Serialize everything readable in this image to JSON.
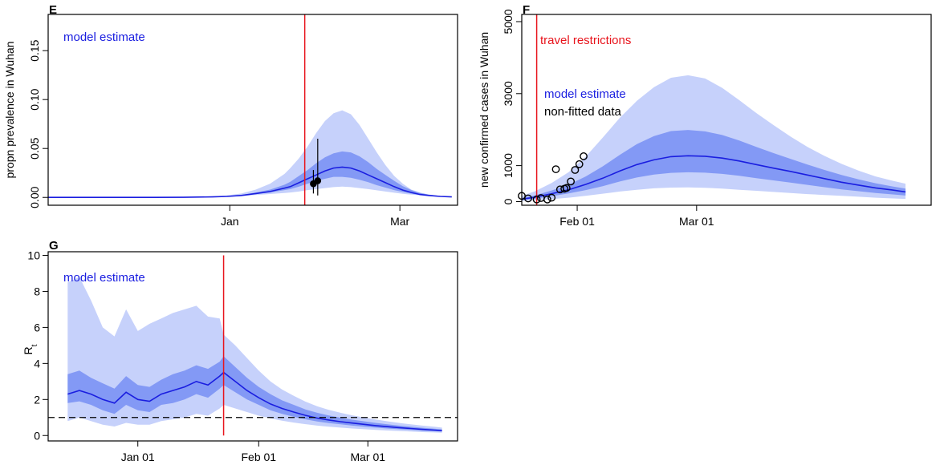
{
  "chart_data": [
    {
      "type": "area",
      "panel": "E",
      "ylabel": "propn prevalence in Wuhan",
      "x_ticks": [
        "Jan",
        "Mar"
      ],
      "y_ticks": [
        "0.00",
        "0.05",
        "0.10",
        "0.15"
      ],
      "ylim": [
        -0.008,
        0.187
      ],
      "legend": [
        "model estimate"
      ],
      "intervention_line_x": 27,
      "series_days": [
        -45,
        -35,
        -25,
        -15,
        -5,
        0,
        5,
        10,
        15,
        20,
        22,
        25,
        28,
        31,
        34,
        37,
        40,
        43,
        46,
        49,
        52,
        55,
        58,
        61,
        64,
        67,
        70,
        74,
        78
      ],
      "median": [
        0,
        0,
        0,
        0.0001,
        0.0005,
        0.001,
        0.002,
        0.004,
        0.006,
        0.0095,
        0.011,
        0.015,
        0.019,
        0.023,
        0.027,
        0.03,
        0.031,
        0.03,
        0.027,
        0.023,
        0.019,
        0.015,
        0.011,
        0.0075,
        0.005,
        0.003,
        0.002,
        0.001,
        0.0005
      ],
      "band_50": [
        [
          0,
          0
        ],
        [
          0,
          0
        ],
        [
          0,
          0
        ],
        [
          0.0001,
          0.0001
        ],
        [
          0.0004,
          0.0006
        ],
        [
          0.0008,
          0.0012
        ],
        [
          0.0017,
          0.0025
        ],
        [
          0.0033,
          0.005
        ],
        [
          0.005,
          0.008
        ],
        [
          0.0075,
          0.013
        ],
        [
          0.0085,
          0.016
        ],
        [
          0.011,
          0.022
        ],
        [
          0.014,
          0.028
        ],
        [
          0.017,
          0.035
        ],
        [
          0.019,
          0.041
        ],
        [
          0.021,
          0.045
        ],
        [
          0.021,
          0.047
        ],
        [
          0.02,
          0.046
        ],
        [
          0.018,
          0.042
        ],
        [
          0.0155,
          0.036
        ],
        [
          0.0125,
          0.029
        ],
        [
          0.01,
          0.023
        ],
        [
          0.0075,
          0.017
        ],
        [
          0.0055,
          0.0115
        ],
        [
          0.0038,
          0.0075
        ],
        [
          0.0025,
          0.0045
        ],
        [
          0.0016,
          0.0028
        ],
        [
          0.0009,
          0.0014
        ],
        [
          0.0004,
          0.0006
        ]
      ],
      "band_95": [
        [
          0,
          0
        ],
        [
          0,
          0
        ],
        [
          0,
          0
        ],
        [
          0.0001,
          0.0002
        ],
        [
          0.0003,
          0.001
        ],
        [
          0.0006,
          0.002
        ],
        [
          0.0013,
          0.004
        ],
        [
          0.0025,
          0.008
        ],
        [
          0.0035,
          0.014
        ],
        [
          0.0045,
          0.024
        ],
        [
          0.005,
          0.03
        ],
        [
          0.006,
          0.04
        ],
        [
          0.0075,
          0.052
        ],
        [
          0.0085,
          0.066
        ],
        [
          0.0095,
          0.078
        ],
        [
          0.0105,
          0.086
        ],
        [
          0.011,
          0.089
        ],
        [
          0.0105,
          0.085
        ],
        [
          0.0095,
          0.074
        ],
        [
          0.0085,
          0.06
        ],
        [
          0.0072,
          0.046
        ],
        [
          0.006,
          0.033
        ],
        [
          0.0048,
          0.022
        ],
        [
          0.0037,
          0.014
        ],
        [
          0.0028,
          0.008
        ],
        [
          0.002,
          0.005
        ],
        [
          0.0013,
          0.003
        ],
        [
          0.0007,
          0.0017
        ],
        [
          0.0003,
          0.0008
        ]
      ],
      "observed": [
        {
          "x": 30,
          "y": 0.014,
          "lo": 0.004,
          "hi": 0.028
        },
        {
          "x": 31.5,
          "y": 0.017,
          "lo": 0.002,
          "hi": 0.06
        }
      ]
    },
    {
      "type": "area",
      "panel": "F",
      "ylabel": "new confirmed cases in Wuhan",
      "x_ticks": [
        "Feb 01",
        "Mar 01"
      ],
      "y_ticks": [
        "0",
        "1000",
        "3000",
        "5000"
      ],
      "ylim": [
        -100,
        5200
      ],
      "legend": [
        "travel restrictions",
        "model estimate",
        "non-fitted data"
      ],
      "intervention_line_x": 22.5,
      "series_days": [
        19,
        22,
        26,
        30,
        34,
        38,
        42,
        46,
        50,
        54,
        58,
        62,
        66,
        70,
        74,
        78,
        82,
        86,
        90,
        94,
        98,
        102,
        106,
        109
      ],
      "median": [
        70,
        120,
        220,
        330,
        480,
        650,
        850,
        1030,
        1160,
        1250,
        1275,
        1260,
        1210,
        1130,
        1030,
        930,
        840,
        740,
        640,
        540,
        460,
        380,
        320,
        270
      ],
      "band_50": [
        [
          40,
          100
        ],
        [
          80,
          170
        ],
        [
          150,
          310
        ],
        [
          230,
          470
        ],
        [
          320,
          700
        ],
        [
          430,
          980
        ],
        [
          560,
          1300
        ],
        [
          670,
          1600
        ],
        [
          750,
          1820
        ],
        [
          800,
          1960
        ],
        [
          815,
          1990
        ],
        [
          805,
          1950
        ],
        [
          770,
          1850
        ],
        [
          720,
          1700
        ],
        [
          650,
          1520
        ],
        [
          590,
          1350
        ],
        [
          530,
          1190
        ],
        [
          465,
          1030
        ],
        [
          400,
          880
        ],
        [
          340,
          740
        ],
        [
          290,
          620
        ],
        [
          240,
          510
        ],
        [
          200,
          420
        ],
        [
          170,
          360
        ]
      ],
      "band_95": [
        [
          20,
          160
        ],
        [
          40,
          280
        ],
        [
          70,
          520
        ],
        [
          110,
          820
        ],
        [
          160,
          1250
        ],
        [
          220,
          1780
        ],
        [
          280,
          2330
        ],
        [
          330,
          2800
        ],
        [
          370,
          3180
        ],
        [
          390,
          3440
        ],
        [
          395,
          3510
        ],
        [
          385,
          3420
        ],
        [
          360,
          3160
        ],
        [
          330,
          2820
        ],
        [
          300,
          2460
        ],
        [
          270,
          2130
        ],
        [
          240,
          1810
        ],
        [
          210,
          1520
        ],
        [
          185,
          1270
        ],
        [
          160,
          1050
        ],
        [
          135,
          860
        ],
        [
          110,
          700
        ],
        [
          90,
          580
        ],
        [
          75,
          500
        ]
      ],
      "points_x": [
        19,
        20.5,
        22.5,
        23.5,
        25,
        26,
        27,
        28,
        29,
        29.5,
        30.5,
        31.5,
        32.5,
        33.5
      ],
      "points_y": [
        160,
        90,
        60,
        100,
        60,
        110,
        900,
        340,
        360,
        380,
        560,
        880,
        1040,
        1260
      ]
    },
    {
      "type": "area",
      "panel": "G",
      "ylabel": "R",
      "ylabel_subscript": "t",
      "x_ticks": [
        "Jan 01",
        "Feb 01",
        "Mar 01"
      ],
      "y_ticks": [
        "0",
        "2",
        "4",
        "6",
        "8",
        "10"
      ],
      "ylim": [
        -0.3,
        10.2
      ],
      "legend": [
        "model estimate"
      ],
      "intervention_line_x": 23,
      "reference_line_y": 1,
      "series_days": [
        -17,
        -14,
        -11,
        -8,
        -5,
        -2,
        1,
        4,
        7,
        10,
        13,
        16,
        19,
        22,
        23,
        26,
        29,
        32,
        35,
        38,
        41,
        44,
        47,
        50,
        53,
        56,
        59,
        62,
        65,
        68,
        71,
        74,
        77,
        79
      ],
      "median": [
        2.3,
        2.5,
        2.3,
        2.0,
        1.8,
        2.4,
        2.0,
        1.9,
        2.3,
        2.5,
        2.7,
        3.0,
        2.8,
        3.3,
        3.5,
        3.0,
        2.5,
        2.1,
        1.75,
        1.5,
        1.3,
        1.12,
        0.97,
        0.86,
        0.77,
        0.69,
        0.62,
        0.55,
        0.49,
        0.44,
        0.39,
        0.34,
        0.3,
        0.27
      ],
      "band_50": [
        [
          1.8,
          3.4
        ],
        [
          1.9,
          3.6
        ],
        [
          1.7,
          3.2
        ],
        [
          1.4,
          2.9
        ],
        [
          1.2,
          2.6
        ],
        [
          1.7,
          3.3
        ],
        [
          1.4,
          2.8
        ],
        [
          1.3,
          2.7
        ],
        [
          1.7,
          3.1
        ],
        [
          1.8,
          3.4
        ],
        [
          2.0,
          3.6
        ],
        [
          2.3,
          3.9
        ],
        [
          2.1,
          3.7
        ],
        [
          2.6,
          4.1
        ],
        [
          2.8,
          4.4
        ],
        [
          2.4,
          3.8
        ],
        [
          2.0,
          3.2
        ],
        [
          1.7,
          2.7
        ],
        [
          1.4,
          2.3
        ],
        [
          1.2,
          1.95
        ],
        [
          1.04,
          1.7
        ],
        [
          0.9,
          1.45
        ],
        [
          0.78,
          1.26
        ],
        [
          0.69,
          1.11
        ],
        [
          0.62,
          0.99
        ],
        [
          0.55,
          0.88
        ],
        [
          0.49,
          0.79
        ],
        [
          0.44,
          0.7
        ],
        [
          0.39,
          0.62
        ],
        [
          0.35,
          0.55
        ],
        [
          0.31,
          0.49
        ],
        [
          0.27,
          0.43
        ],
        [
          0.24,
          0.38
        ],
        [
          0.22,
          0.34
        ]
      ],
      "band_95": [
        [
          0.8,
          8.5
        ],
        [
          1.0,
          8.8
        ],
        [
          0.8,
          7.5
        ],
        [
          0.6,
          6.0
        ],
        [
          0.5,
          5.5
        ],
        [
          0.7,
          7.0
        ],
        [
          0.6,
          5.8
        ],
        [
          0.6,
          6.2
        ],
        [
          0.8,
          6.5
        ],
        [
          0.9,
          6.8
        ],
        [
          1.0,
          7.0
        ],
        [
          1.2,
          7.2
        ],
        [
          1.1,
          6.6
        ],
        [
          1.5,
          6.5
        ],
        [
          1.7,
          5.6
        ],
        [
          1.5,
          5.0
        ],
        [
          1.3,
          4.3
        ],
        [
          1.1,
          3.6
        ],
        [
          0.95,
          3.0
        ],
        [
          0.82,
          2.55
        ],
        [
          0.72,
          2.2
        ],
        [
          0.63,
          1.88
        ],
        [
          0.55,
          1.62
        ],
        [
          0.49,
          1.42
        ],
        [
          0.44,
          1.26
        ],
        [
          0.39,
          1.12
        ],
        [
          0.35,
          1.0
        ],
        [
          0.31,
          0.89
        ],
        [
          0.28,
          0.79
        ],
        [
          0.25,
          0.7
        ],
        [
          0.22,
          0.62
        ],
        [
          0.19,
          0.55
        ],
        [
          0.17,
          0.49
        ],
        [
          0.16,
          0.44
        ]
      ]
    }
  ],
  "colors": {
    "band_95": "#c6d1fb",
    "band_50": "#8399f5",
    "median": "#1a1ee0",
    "intervention": "#e8141c",
    "legend_blue": "#1a1ee0",
    "legend_red": "#e8141c",
    "text": "#000000"
  }
}
